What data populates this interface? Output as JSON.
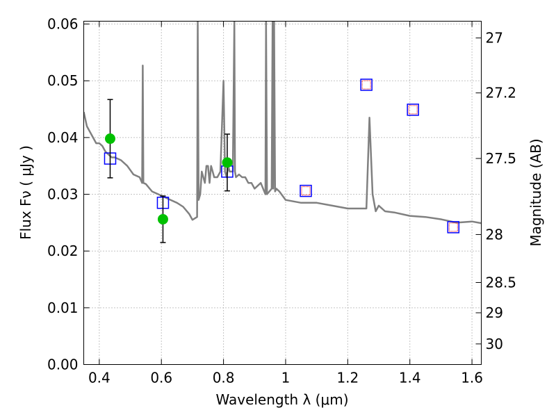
{
  "chart_data": {
    "type": "scatter",
    "title": "",
    "xlabel": "Wavelength  λ (μm)",
    "ylabel": "Flux  Fν  ( μJy )",
    "y2label": "Magnitude (AB)",
    "xlim": [
      0.35,
      1.63
    ],
    "ylim": [
      0.0,
      0.0605
    ],
    "grid": true,
    "x_ticks": [
      0.4,
      0.6,
      0.8,
      1.0,
      1.2,
      1.4,
      1.6
    ],
    "x_tick_labels": [
      "0.4",
      "0.6",
      "0.8",
      "1",
      "1.2",
      "1.4",
      "1.6"
    ],
    "y_ticks": [
      0.0,
      0.01,
      0.02,
      0.03,
      0.04,
      0.05,
      0.06
    ],
    "y_tick_labels": [
      "0.00",
      "0.01",
      "0.02",
      "0.03",
      "0.04",
      "0.05",
      "0.06"
    ],
    "y2_ticks": [
      27,
      27.2,
      27.5,
      28,
      28.5,
      29,
      30
    ],
    "y2_tick_labels": [
      "27",
      "27.2",
      "27.5",
      "28",
      "28.5",
      "29",
      "30"
    ],
    "colors": {
      "template": "#808080",
      "observed": "#00c000",
      "model": "#0000ff",
      "upper": "#ff0000",
      "errorbar": "#000000",
      "grid": "#888888"
    },
    "series": [
      {
        "name": "template spectrum",
        "kind": "line",
        "x": [
          0.35,
          0.36,
          0.37,
          0.38,
          0.39,
          0.4,
          0.41,
          0.42,
          0.43,
          0.44,
          0.45,
          0.47,
          0.49,
          0.51,
          0.53,
          0.538,
          0.54,
          0.542,
          0.55,
          0.57,
          0.59,
          0.61,
          0.63,
          0.65,
          0.67,
          0.69,
          0.7,
          0.715,
          0.717,
          0.72,
          0.725,
          0.73,
          0.74,
          0.745,
          0.75,
          0.755,
          0.76,
          0.765,
          0.77,
          0.78,
          0.79,
          0.8,
          0.805,
          0.81,
          0.815,
          0.82,
          0.83,
          0.835,
          0.837,
          0.84,
          0.85,
          0.86,
          0.87,
          0.88,
          0.89,
          0.9,
          0.92,
          0.935,
          0.937,
          0.94,
          0.955,
          0.958,
          0.96,
          0.963,
          0.966,
          0.97,
          0.98,
          1.0,
          1.05,
          1.1,
          1.15,
          1.2,
          1.25,
          1.26,
          1.27,
          1.28,
          1.29,
          1.3,
          1.32,
          1.35,
          1.4,
          1.45,
          1.5,
          1.55,
          1.6,
          1.63
        ],
        "y": [
          0.0445,
          0.042,
          0.041,
          0.04,
          0.039,
          0.039,
          0.0385,
          0.0375,
          0.037,
          0.0365,
          0.0365,
          0.036,
          0.035,
          0.0335,
          0.033,
          0.032,
          0.0527,
          0.032,
          0.0318,
          0.0305,
          0.03,
          0.0295,
          0.029,
          0.0285,
          0.0278,
          0.0265,
          0.0255,
          0.026,
          0.0605,
          0.029,
          0.03,
          0.034,
          0.032,
          0.035,
          0.035,
          0.032,
          0.035,
          0.034,
          0.033,
          0.033,
          0.034,
          0.05,
          0.034,
          0.033,
          0.035,
          0.034,
          0.034,
          0.0605,
          0.034,
          0.033,
          0.0335,
          0.033,
          0.033,
          0.032,
          0.032,
          0.031,
          0.032,
          0.03,
          0.0605,
          0.03,
          0.031,
          0.0605,
          0.031,
          0.0605,
          0.0305,
          0.031,
          0.0305,
          0.029,
          0.0285,
          0.0285,
          0.028,
          0.0275,
          0.0275,
          0.0275,
          0.0435,
          0.03,
          0.027,
          0.028,
          0.027,
          0.0268,
          0.0262,
          0.026,
          0.0256,
          0.025,
          0.0252,
          0.0249
        ]
      },
      {
        "name": "observed",
        "kind": "point",
        "x": [
          0.435,
          0.605,
          0.812
        ],
        "y": [
          0.0398,
          0.0256,
          0.0356
        ],
        "yerr": [
          0.0069,
          0.0041,
          0.005
        ]
      },
      {
        "name": "model",
        "kind": "square",
        "x": [
          0.435,
          0.605,
          0.812,
          1.065,
          1.26,
          1.41,
          1.54
        ],
        "y": [
          0.0363,
          0.0285,
          0.034,
          0.0306,
          0.0493,
          0.0449,
          0.0242
        ]
      },
      {
        "name": "upper",
        "kind": "square-small",
        "x": [
          1.065,
          1.26,
          1.41,
          1.54
        ],
        "y": [
          0.0306,
          0.0493,
          0.0449,
          0.0242
        ]
      }
    ]
  }
}
